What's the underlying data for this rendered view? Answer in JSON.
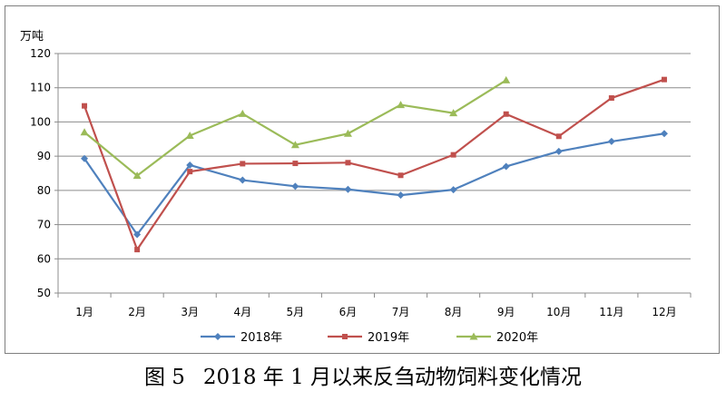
{
  "chart_data": {
    "type": "line",
    "title": "",
    "ylabel": "万吨",
    "xlabel": "",
    "ylim": [
      50,
      120
    ],
    "yticks": [
      50,
      60,
      70,
      80,
      90,
      100,
      110,
      120
    ],
    "grid": true,
    "legend_position": "bottom",
    "categories": [
      "1月",
      "2月",
      "3月",
      "4月",
      "5月",
      "6月",
      "7月",
      "8月",
      "9月",
      "10月",
      "11月",
      "12月"
    ],
    "series": [
      {
        "name": "2018年",
        "color": "#4f81bd",
        "marker": "diamond",
        "values": [
          89.3,
          67.1,
          87.4,
          83.0,
          81.2,
          80.3,
          78.6,
          80.2,
          87.0,
          91.4,
          94.3,
          96.6
        ]
      },
      {
        "name": "2019年",
        "color": "#c0504d",
        "marker": "square",
        "values": [
          104.7,
          62.7,
          85.5,
          87.8,
          87.9,
          88.1,
          84.4,
          90.4,
          102.3,
          95.8,
          107.0,
          112.4
        ]
      },
      {
        "name": "2020年",
        "color": "#9bbb59",
        "marker": "triangle",
        "values": [
          97.0,
          84.3,
          96.0,
          102.4,
          93.3,
          96.6,
          105.0,
          102.6,
          112.2,
          null,
          null,
          null
        ]
      }
    ]
  },
  "caption": {
    "figure_no": "图 5",
    "text": "2018 年 1 月以来反刍动物饲料变化情况"
  }
}
